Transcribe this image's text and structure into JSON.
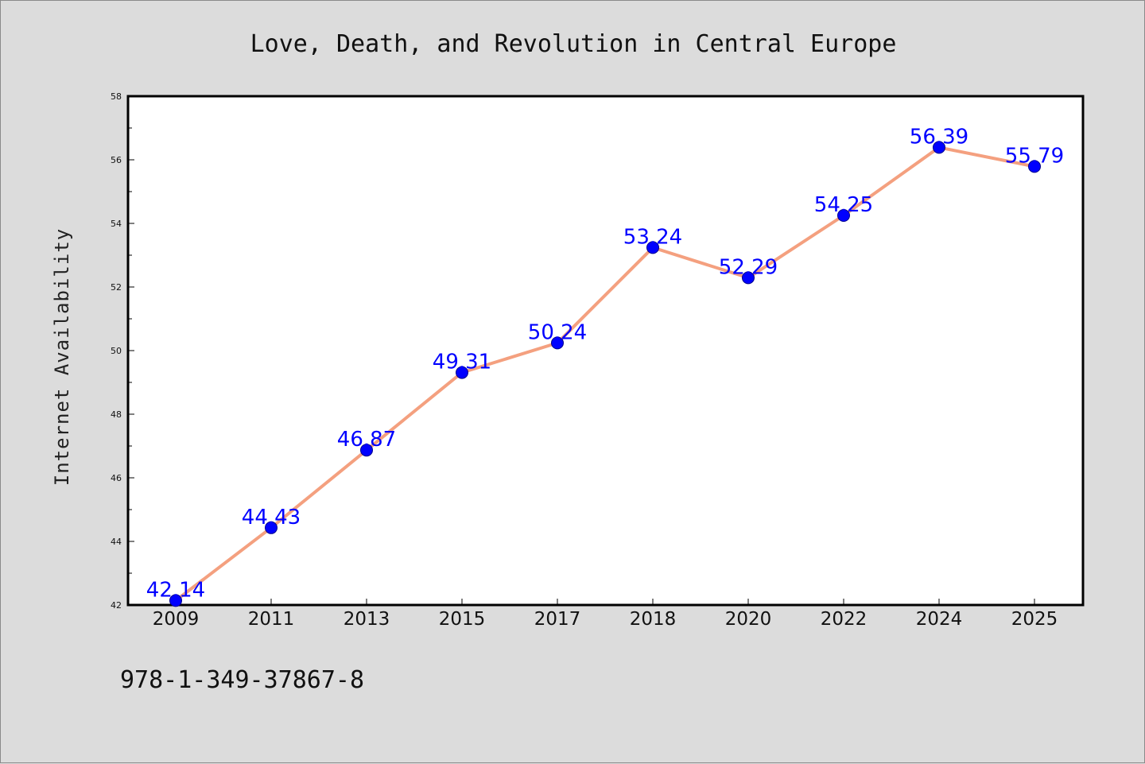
{
  "chart_data": {
    "type": "line",
    "title": "Love, Death, and Revolution in Central Europe",
    "xlabel": "",
    "ylabel": "Internet Availability",
    "categories": [
      "2009",
      "2011",
      "2013",
      "2015",
      "2017",
      "2018",
      "2020",
      "2022",
      "2024",
      "2025"
    ],
    "series": [
      {
        "values": [
          42.14,
          44.43,
          46.87,
          49.31,
          50.24,
          53.24,
          52.29,
          54.25,
          56.39,
          55.79
        ],
        "labels": [
          "42.14",
          "44.43",
          "46.87",
          "49.31",
          "50.24",
          "53.24",
          "52.29",
          "54.25",
          "56.39",
          "55.79"
        ]
      }
    ],
    "ylim": [
      42,
      58
    ],
    "yticks": [
      "42",
      "44",
      "46",
      "48",
      "50",
      "52",
      "54",
      "56",
      "58"
    ],
    "grid": false,
    "colors": {
      "line": "#f4a07f",
      "marker": "#0000ff",
      "data_label": "#0000ff"
    }
  },
  "footer": {
    "text": "978-1-349-37867-8"
  }
}
